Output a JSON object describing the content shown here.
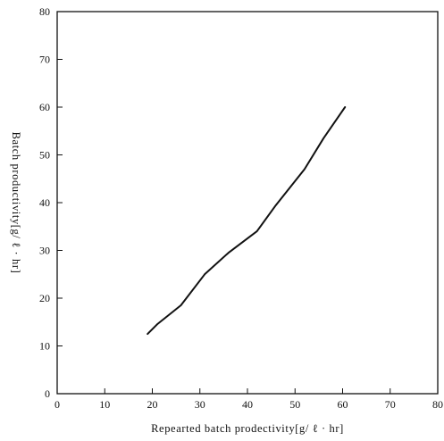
{
  "chart_data": {
    "type": "line",
    "title": "",
    "xlabel": "Repearted batch prodectivity[g/ ℓ · hr]",
    "ylabel": "Batch productivity[g/ ℓ · hr]",
    "xlim": [
      0,
      80
    ],
    "ylim": [
      0,
      80
    ],
    "xticks": [
      0,
      10,
      20,
      30,
      40,
      50,
      60,
      70,
      80
    ],
    "yticks": [
      0,
      10,
      20,
      30,
      40,
      50,
      60,
      70,
      80
    ],
    "grid": false,
    "series": [
      {
        "values_x": [
          19,
          21,
          26,
          31,
          36,
          42,
          46,
          52,
          56,
          60.5
        ],
        "values_y": [
          12.5,
          14.5,
          18.5,
          25,
          29.5,
          34,
          39.5,
          47,
          53.5,
          60
        ]
      }
    ]
  }
}
